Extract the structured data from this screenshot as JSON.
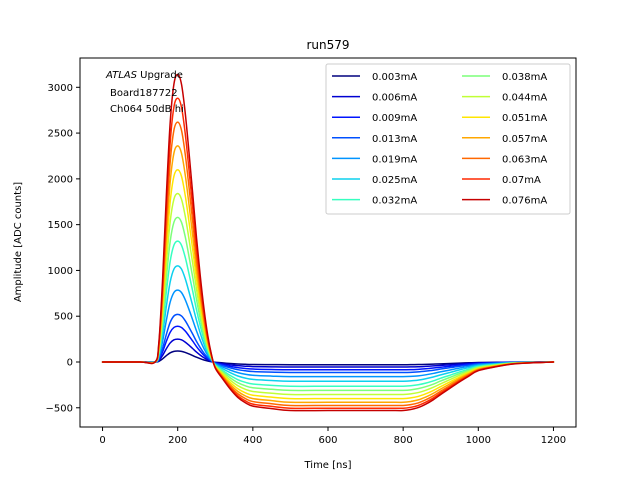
{
  "chart_data": {
    "type": "line",
    "title": "run579",
    "xlabel": "Time [ns]",
    "ylabel": "Amplitude [ADC counts]",
    "xlim": [
      -60,
      1260
    ],
    "ylim": [
      -710,
      3320
    ],
    "xticks": [
      0,
      200,
      400,
      600,
      800,
      1000,
      1200
    ],
    "yticks": [
      -500,
      0,
      500,
      1000,
      1500,
      2000,
      2500,
      3000
    ],
    "xtick_labels": [
      "0",
      "200",
      "400",
      "600",
      "800",
      "1000",
      "1200"
    ],
    "ytick_labels": [
      "−500",
      "0",
      "500",
      "1000",
      "1500",
      "2000",
      "2500",
      "3000"
    ],
    "grid": false,
    "legend_position": "upper-right",
    "legend_columns": 2,
    "annotation": {
      "line1_italic": "ATLAS",
      "line1_rest": " Upgrade",
      "line2": "Board187722",
      "line3": "Ch064 50dB hi"
    },
    "x_samples_ns": [
      0,
      100,
      140,
      150,
      160,
      170,
      180,
      190,
      200,
      210,
      220,
      230,
      240,
      250,
      260,
      270,
      280,
      290,
      300,
      320,
      340,
      360,
      380,
      400,
      450,
      500,
      600,
      700,
      780,
      800,
      820,
      840,
      860,
      880,
      900,
      925,
      950,
      975,
      1000,
      1050,
      1100,
      1200
    ],
    "shape_description_note": "",
    "series": [
      {
        "name": "0.003mA",
        "color": "#00007f",
        "peak": 120,
        "undershoot": -30,
        "values": [
          0,
          0,
          0,
          8,
          35,
          70,
          100,
          116,
          120,
          116,
          104,
          88,
          70,
          52,
          36,
          22,
          11,
          3,
          -3,
          -10,
          -17,
          -22,
          -25,
          -27,
          -29,
          -30,
          -30,
          -30,
          -30,
          -30,
          -29,
          -28,
          -26,
          -23,
          -20,
          -16,
          -12,
          -9,
          -6,
          -3,
          -1,
          0
        ]
      },
      {
        "name": "0.006mA",
        "color": "#0000d1",
        "peak": 250,
        "undershoot": -55,
        "values": [
          0,
          0,
          0,
          17,
          73,
          146,
          208,
          242,
          250,
          242,
          217,
          183,
          146,
          108,
          75,
          46,
          23,
          6,
          -6,
          -19,
          -31,
          -40,
          -46,
          -50,
          -53,
          -55,
          -55,
          -55,
          -55,
          -55,
          -54,
          -52,
          -48,
          -43,
          -37,
          -30,
          -23,
          -16,
          -10,
          -5,
          -2,
          0
        ]
      },
      {
        "name": "0.009mA",
        "color": "#0014ff",
        "peak": 390,
        "undershoot": -85,
        "values": [
          0,
          0,
          0,
          27,
          114,
          228,
          325,
          377,
          390,
          377,
          338,
          285,
          228,
          169,
          117,
          72,
          36,
          10,
          -10,
          -30,
          -48,
          -62,
          -71,
          -77,
          -82,
          -85,
          -85,
          -85,
          -85,
          -85,
          -84,
          -80,
          -74,
          -66,
          -57,
          -46,
          -35,
          -25,
          -16,
          -8,
          -3,
          0
        ]
      },
      {
        "name": "0.013mA",
        "color": "#0050ff",
        "peak": 520,
        "undershoot": -115,
        "values": [
          0,
          0,
          0,
          36,
          152,
          304,
          433,
          503,
          520,
          503,
          451,
          380,
          304,
          225,
          156,
          96,
          48,
          13,
          -13,
          -40,
          -64,
          -84,
          -96,
          -104,
          -111,
          -115,
          -115,
          -115,
          -115,
          -115,
          -113,
          -108,
          -100,
          -90,
          -77,
          -62,
          -47,
          -34,
          -21,
          -11,
          -4,
          0
        ]
      },
      {
        "name": "0.019mA",
        "color": "#0094ff",
        "peak": 785,
        "undershoot": -160,
        "values": [
          0,
          0,
          0,
          55,
          229,
          459,
          654,
          759,
          785,
          759,
          681,
          574,
          459,
          340,
          235,
          145,
          72,
          20,
          -20,
          -56,
          -89,
          -116,
          -134,
          -145,
          -154,
          -160,
          -160,
          -160,
          -160,
          -160,
          -157,
          -151,
          -140,
          -125,
          -107,
          -87,
          -66,
          -47,
          -29,
          -15,
          -5,
          0
        ]
      },
      {
        "name": "0.025mA",
        "color": "#0dd0ee",
        "peak": 1050,
        "undershoot": -210,
        "values": [
          0,
          0,
          0,
          74,
          307,
          614,
          874,
          1015,
          1050,
          1015,
          910,
          767,
          614,
          455,
          315,
          194,
          96,
          26,
          -26,
          -74,
          -117,
          -153,
          -176,
          -190,
          -202,
          -210,
          -210,
          -210,
          -210,
          -210,
          -206,
          -198,
          -183,
          -164,
          -141,
          -114,
          -86,
          -61,
          -38,
          -20,
          -7,
          0
        ]
      },
      {
        "name": "0.032mA",
        "color": "#36ffc0",
        "peak": 1320,
        "undershoot": -265,
        "values": [
          0,
          0,
          0,
          92,
          386,
          772,
          1099,
          1276,
          1320,
          1276,
          1144,
          964,
          772,
          572,
          396,
          244,
          121,
          33,
          -33,
          -93,
          -148,
          -193,
          -222,
          -240,
          -255,
          -265,
          -265,
          -265,
          -265,
          -265,
          -260,
          -249,
          -231,
          -207,
          -177,
          -144,
          -109,
          -77,
          -48,
          -25,
          -9,
          0
        ]
      },
      {
        "name": "0.038mA",
        "color": "#7cff79",
        "peak": 1580,
        "undershoot": -310,
        "values": [
          0,
          0,
          0,
          111,
          462,
          924,
          1316,
          1527,
          1580,
          1527,
          1369,
          1154,
          924,
          685,
          474,
          292,
          145,
          40,
          -39,
          -109,
          -173,
          -226,
          -260,
          -281,
          -298,
          -310,
          -310,
          -310,
          -310,
          -310,
          -304,
          -291,
          -270,
          -242,
          -207,
          -168,
          -127,
          -90,
          -56,
          -29,
          -11,
          0
        ]
      },
      {
        "name": "0.044mA",
        "color": "#c0ff36",
        "peak": 1840,
        "undershoot": -355,
        "values": [
          0,
          0,
          0,
          129,
          538,
          1076,
          1532,
          1779,
          1840,
          1779,
          1594,
          1343,
          1076,
          797,
          552,
          340,
          169,
          46,
          -44,
          -124,
          -199,
          -259,
          -298,
          -322,
          -341,
          -355,
          -355,
          -355,
          -355,
          -355,
          -348,
          -334,
          -309,
          -277,
          -238,
          -192,
          -146,
          -103,
          -64,
          -34,
          -12,
          0
        ]
      },
      {
        "name": "0.051mA",
        "color": "#ffe600",
        "peak": 2100,
        "undershoot": -400,
        "values": [
          0,
          0,
          0,
          147,
          614,
          1228,
          1749,
          2030,
          2100,
          2030,
          1820,
          1533,
          1228,
          910,
          630,
          388,
          193,
          53,
          -50,
          -140,
          -224,
          -292,
          -336,
          -363,
          -384,
          -400,
          -400,
          -400,
          -400,
          -400,
          -392,
          -376,
          -348,
          -312,
          -268,
          -216,
          -164,
          -116,
          -72,
          -38,
          -14,
          0
        ]
      },
      {
        "name": "0.057mA",
        "color": "#ffa700",
        "peak": 2360,
        "undershoot": -440,
        "values": [
          0,
          0,
          0,
          165,
          690,
          1380,
          1965,
          2282,
          2360,
          2282,
          2045,
          1723,
          1380,
          1022,
          708,
          436,
          217,
          59,
          -55,
          -154,
          -246,
          -321,
          -370,
          -400,
          -422,
          -440,
          -440,
          -440,
          -440,
          -440,
          -431,
          -414,
          -383,
          -343,
          -295,
          -238,
          -180,
          -128,
          -79,
          -42,
          -15,
          0
        ]
      },
      {
        "name": "0.063mA",
        "color": "#ff6800",
        "peak": 2620,
        "undershoot": -475,
        "values": [
          0,
          0,
          0,
          183,
          766,
          1532,
          2182,
          2533,
          2620,
          2533,
          2271,
          1913,
          1532,
          1135,
          786,
          484,
          241,
          66,
          -59,
          -166,
          -266,
          -347,
          -399,
          -432,
          -456,
          -475,
          -475,
          -475,
          -475,
          -475,
          -466,
          -447,
          -413,
          -371,
          -318,
          -257,
          -195,
          -138,
          -86,
          -45,
          -17,
          0
        ]
      },
      {
        "name": "0.07mA",
        "color": "#ff2900",
        "peak": 2880,
        "undershoot": -505,
        "values": [
          0,
          0,
          0,
          202,
          842,
          1684,
          2398,
          2785,
          2880,
          2785,
          2496,
          2103,
          1684,
          1248,
          864,
          532,
          265,
          72,
          -63,
          -177,
          -283,
          -369,
          -424,
          -460,
          -485,
          -505,
          -505,
          -505,
          -505,
          -505,
          -495,
          -475,
          -439,
          -394,
          -338,
          -273,
          -207,
          -146,
          -91,
          -48,
          -18,
          0
        ]
      },
      {
        "name": "0.076mA",
        "color": "#c60000",
        "peak": 3140,
        "undershoot": -530,
        "values": [
          0,
          0,
          0,
          220,
          918,
          1836,
          2615,
          3036,
          3140,
          3036,
          2721,
          2293,
          1836,
          1360,
          942,
          580,
          289,
          79,
          -66,
          -186,
          -297,
          -387,
          -445,
          -482,
          -509,
          -530,
          -530,
          -530,
          -530,
          -530,
          -519,
          -498,
          -461,
          -413,
          -355,
          -286,
          -217,
          -154,
          -95,
          -50,
          -19,
          0
        ]
      }
    ]
  }
}
